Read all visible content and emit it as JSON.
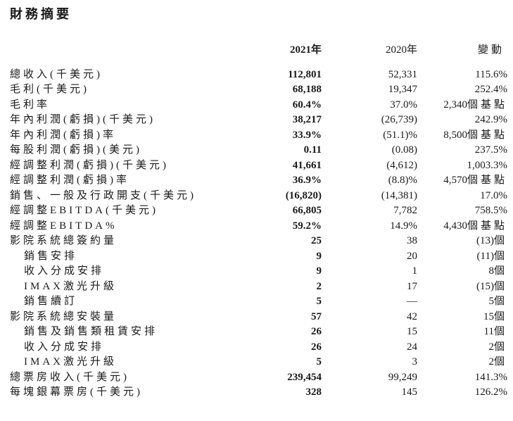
{
  "page": {
    "title": "財務摘要"
  },
  "table": {
    "columns": [
      "2021年",
      "2020年",
      "變動"
    ],
    "rows": [
      {
        "label": "總收入(千美元)",
        "indent": false,
        "v2021": "112,801",
        "v2020": "52,331",
        "change": "115.6%",
        "unit": ""
      },
      {
        "label": "毛利(千美元)",
        "indent": false,
        "v2021": "68,188",
        "v2020": "19,347",
        "change": "252.4%",
        "unit": ""
      },
      {
        "label": "毛利率",
        "indent": false,
        "v2021": "60.4%",
        "v2020": "37.0%",
        "change": "2,340",
        "unit": "個基點"
      },
      {
        "label": "年內利潤(虧損)(千美元)",
        "indent": false,
        "v2021": "38,217",
        "v2020": "(26,739)",
        "change": "242.9%",
        "unit": ""
      },
      {
        "label": "年內利潤(虧損)率",
        "indent": false,
        "v2021": "33.9%",
        "v2020": "(51.1)%",
        "change": "8,500",
        "unit": "個基點"
      },
      {
        "label": "每股利潤(虧損)(美元)",
        "indent": false,
        "v2021": "0.11",
        "v2020": "(0.08)",
        "change": "237.5%",
        "unit": ""
      },
      {
        "label": "經調整利潤(虧損)(千美元)",
        "indent": false,
        "v2021": "41,661",
        "v2020": "(4,612)",
        "change": "1,003.3%",
        "unit": ""
      },
      {
        "label": "經調整利潤(虧損)率",
        "indent": false,
        "v2021": "36.9%",
        "v2020": "(8.8)%",
        "change": "4,570",
        "unit": "個基點"
      },
      {
        "label": "銷售、一般及行政開支(千美元)",
        "indent": false,
        "v2021": "(16,820)",
        "v2020": "(14,381)",
        "change": "17.0%",
        "unit": ""
      },
      {
        "label": "經調整EBITDA(千美元)",
        "indent": false,
        "v2021": "66,805",
        "v2020": "7,782",
        "change": "758.5%",
        "unit": ""
      },
      {
        "label": "經調整EBITDA%",
        "indent": false,
        "v2021": "59.2%",
        "v2020": "14.9%",
        "change": "4,430",
        "unit": "個基點"
      },
      {
        "label": "影院系統總簽約量",
        "indent": false,
        "v2021": "25",
        "v2020": "38",
        "change": "(13)",
        "unit": "個"
      },
      {
        "label": "銷售安排",
        "indent": true,
        "v2021": "9",
        "v2020": "20",
        "change": "(11)",
        "unit": "個"
      },
      {
        "label": "收入分成安排",
        "indent": true,
        "v2021": "9",
        "v2020": "1",
        "change": "8",
        "unit": "個"
      },
      {
        "label": "IMAX激光升級",
        "indent": true,
        "v2021": "2",
        "v2020": "17",
        "change": "(15)",
        "unit": "個"
      },
      {
        "label": "銷售續訂",
        "indent": true,
        "v2021": "5",
        "v2020": "—",
        "change": "5",
        "unit": "個"
      },
      {
        "label": "影院系統總安裝量",
        "indent": false,
        "v2021": "57",
        "v2020": "42",
        "change": "15",
        "unit": "個"
      },
      {
        "label": "銷售及銷售類租賃安排",
        "indent": true,
        "v2021": "26",
        "v2020": "15",
        "change": "11",
        "unit": "個"
      },
      {
        "label": "收入分成安排",
        "indent": true,
        "v2021": "26",
        "v2020": "24",
        "change": "2",
        "unit": "個"
      },
      {
        "label": "IMAX激光升級",
        "indent": true,
        "v2021": "5",
        "v2020": "3",
        "change": "2",
        "unit": "個"
      },
      {
        "label": "總票房收入(千美元)",
        "indent": false,
        "v2021": "239,454",
        "v2020": "99,249",
        "change": "141.3%",
        "unit": ""
      },
      {
        "label": "每塊銀幕票房(千美元)",
        "indent": false,
        "v2021": "328",
        "v2020": "145",
        "change": "126.2%",
        "unit": ""
      }
    ]
  }
}
